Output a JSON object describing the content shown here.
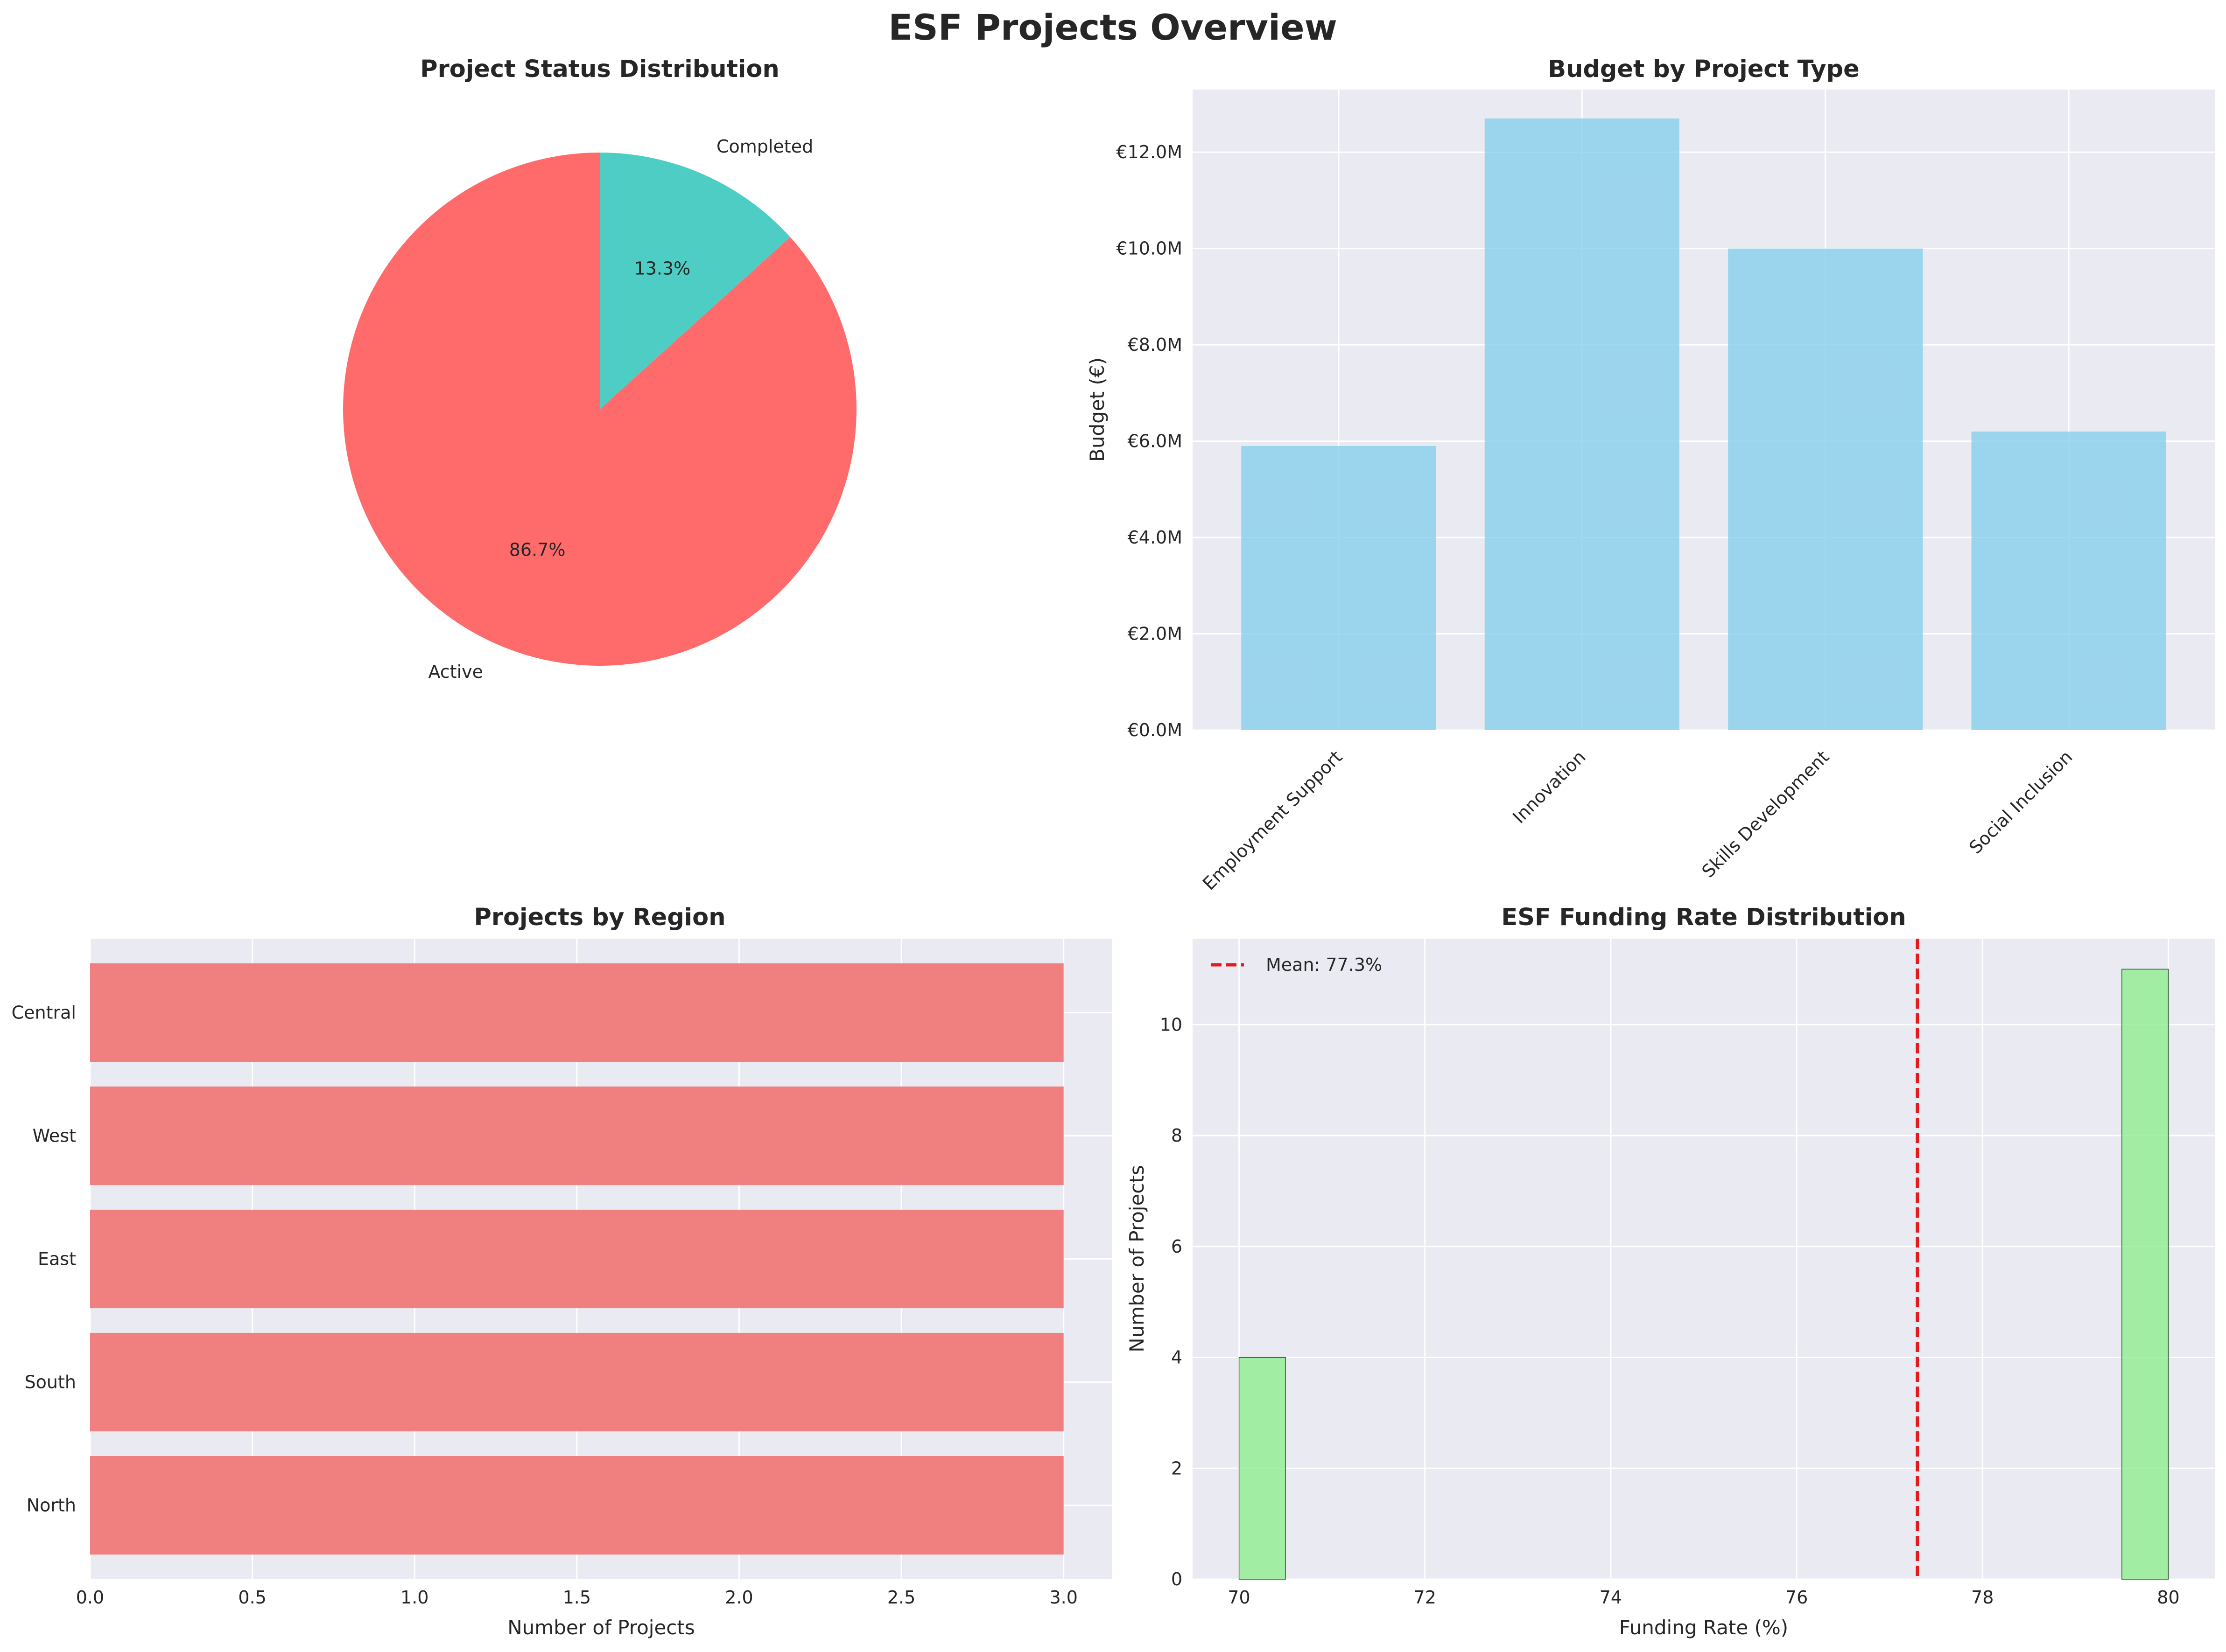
{
  "title": "ESF Projects Overview",
  "colors": {
    "axes_bg": "#eaeaf2",
    "grid": "#ffffff",
    "pie_active": "#ff6b6b",
    "pie_completed": "#4ecdc4",
    "bar_type": "#87ceeb",
    "bar_region": "#f08080",
    "hist": "#90ee90",
    "mean_line": "#e41a1c"
  },
  "chart_data": [
    {
      "type": "pie",
      "title": "Project Status Distribution",
      "labels": [
        "Active",
        "Completed"
      ],
      "values": [
        86.7,
        13.3
      ],
      "pct_labels": [
        "86.7%",
        "13.3%"
      ]
    },
    {
      "type": "bar",
      "title": "Budget by Project Type",
      "categories": [
        "Employment Support",
        "Innovation",
        "Skills Development",
        "Social Inclusion"
      ],
      "values": [
        5.9,
        12.7,
        10.0,
        6.2
      ],
      "value_unit": "€M",
      "ylabel": "Budget (€)",
      "ylim": [
        0,
        13.3
      ],
      "yticks": [
        0,
        2,
        4,
        6,
        8,
        10,
        12
      ],
      "ytick_labels": [
        "€0.0M",
        "€2.0M",
        "€4.0M",
        "€6.0M",
        "€8.0M",
        "€10.0M",
        "€12.0M"
      ]
    },
    {
      "type": "bar",
      "orientation": "horizontal",
      "title": "Projects by Region",
      "categories": [
        "North",
        "South",
        "East",
        "West",
        "Central"
      ],
      "values": [
        3,
        3,
        3,
        3,
        3
      ],
      "xlabel": "Number of Projects",
      "xlim": [
        0,
        3.15
      ],
      "xticks": [
        0,
        0.5,
        1,
        1.5,
        2,
        2.5,
        3
      ],
      "xtick_labels": [
        "0.0",
        "0.5",
        "1.0",
        "1.5",
        "2.0",
        "2.5",
        "3.0"
      ]
    },
    {
      "type": "bar",
      "subtype": "histogram",
      "title": "ESF Funding Rate Distribution",
      "bins": [
        {
          "x0": 70,
          "x1": 70.5,
          "count": 4
        },
        {
          "x0": 79.5,
          "x1": 80,
          "count": 11
        }
      ],
      "mean": 77.3,
      "legend": "Mean: 77.3%",
      "xlabel": "Funding Rate (%)",
      "ylabel": "Number of Projects",
      "xlim": [
        69.5,
        80.5
      ],
      "ylim": [
        0,
        11.55
      ],
      "xticks": [
        70,
        72,
        74,
        76,
        78,
        80
      ],
      "xtick_labels": [
        "70",
        "72",
        "74",
        "76",
        "78",
        "80"
      ],
      "yticks": [
        0,
        2,
        4,
        6,
        8,
        10
      ],
      "ytick_labels": [
        "0",
        "2",
        "4",
        "6",
        "8",
        "10"
      ]
    }
  ]
}
